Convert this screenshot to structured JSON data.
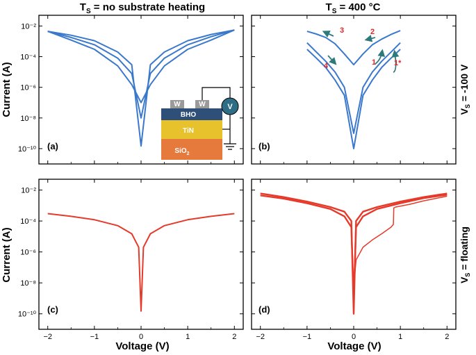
{
  "figure": {
    "column_titles": [
      "T_S = no substrate heating",
      "T_S = 400 °C"
    ],
    "row_labels": [
      "V_S = -100 V",
      "V_S = floating"
    ],
    "xlabel": "Voltage (V)",
    "ylabel": "Current (A)"
  },
  "inset": {
    "electrode_label": "W",
    "meter_label": "V",
    "layers": [
      "BHO",
      "TiN",
      "SiO2"
    ],
    "colors": {
      "bho": "#2e4f78",
      "tin": "#e8c22c",
      "sio2": "#e57a3c",
      "electrode": "#9a9a9a",
      "meter": "#2e6d86"
    }
  },
  "annotations": {
    "arrows": [
      "1",
      "1*",
      "2",
      "3",
      "4"
    ],
    "color": "#e0262b",
    "arrow_color": "#2e7a7a"
  },
  "chart_data": [
    {
      "panel": "(a)",
      "type": "line",
      "xlabel": "",
      "ylabel": "Current (A)",
      "xlim": [
        -2.1,
        2.1
      ],
      "ylim": [
        1e-11,
        0.05
      ],
      "yscale": "log",
      "xticks": [
        -2,
        -1,
        0,
        1,
        2
      ],
      "yticks": [
        1e-10,
        1e-08,
        1e-06,
        0.0001,
        0.01
      ],
      "ytick_labels": [
        "10^-10",
        "10^-8",
        "10^-6",
        "10^-4",
        "10^-2"
      ],
      "color": "#3a78cc",
      "series": [
        {
          "x": [
            -2,
            -1.5,
            -1,
            -0.5,
            -0.2,
            0,
            0.2,
            0.5,
            1,
            1.5,
            2
          ],
          "y": [
            0.0045,
            0.0025,
            0.0011,
            0.0002,
            3e-05,
            1.5e-10,
            3e-05,
            0.0002,
            0.0011,
            0.0028,
            0.0055
          ]
        },
        {
          "x": [
            -2,
            -1.5,
            -1,
            -0.5,
            -0.2,
            0,
            0.2,
            0.5,
            1,
            1.5,
            2
          ],
          "y": [
            0.0045,
            0.0018,
            0.0006,
            8e-05,
            8e-06,
            1e-08,
            8e-06,
            8e-05,
            0.0006,
            0.002,
            0.0055
          ]
        },
        {
          "x": [
            -2,
            -1.5,
            -1,
            -0.5,
            -0.2,
            0,
            0.2,
            0.5,
            1,
            1.5,
            2
          ],
          "y": [
            0.0045,
            0.0012,
            0.0003,
            2.5e-05,
            1.5e-06,
            1e-07,
            1.5e-06,
            2.5e-05,
            0.0003,
            0.0012,
            0.0055
          ]
        }
      ]
    },
    {
      "panel": "(b)",
      "type": "line",
      "xlabel": "",
      "ylabel": "",
      "xlim": [
        -2.1,
        2.1
      ],
      "ylim": [
        1e-11,
        0.05
      ],
      "yscale": "log",
      "xticks": [
        -2,
        -1,
        0,
        1,
        2
      ],
      "yticks": [
        1e-10,
        1e-08,
        1e-06,
        0.0001,
        0.01
      ],
      "color": "#3a78cc",
      "series": [
        {
          "x": [
            -1,
            -0.8,
            -0.6,
            -0.4,
            -0.2,
            0,
            0.2,
            0.4,
            0.6,
            0.8,
            1
          ],
          "y": [
            0.0045,
            0.003,
            0.0018,
            0.0007,
            0.00015,
            3e-05,
            0.00015,
            0.0006,
            0.0014,
            0.0028,
            0.005
          ]
        },
        {
          "x": [
            -1,
            -0.8,
            -0.6,
            -0.4,
            -0.2,
            0,
            0.2,
            0.4,
            0.6,
            0.8,
            1
          ],
          "y": [
            0.0008,
            0.0002,
            5e-05,
            1e-05,
            1e-06,
            1e-09,
            1e-06,
            1e-05,
            5e-05,
            0.0002,
            0.0008
          ]
        },
        {
          "x": [
            -1,
            -0.8,
            -0.6,
            -0.4,
            -0.2,
            0,
            0.2,
            0.4,
            0.6,
            0.8,
            1
          ],
          "y": [
            0.0003,
            8e-05,
            2e-05,
            3e-06,
            3e-07,
            1e-10,
            3e-07,
            3e-06,
            2e-05,
            8e-05,
            0.0003
          ]
        }
      ]
    },
    {
      "panel": "(c)",
      "type": "line",
      "xlabel": "Voltage (V)",
      "ylabel": "Current (A)",
      "xlim": [
        -2.1,
        2.1
      ],
      "ylim": [
        1e-11,
        0.05
      ],
      "yscale": "log",
      "xticks": [
        -2,
        -1,
        0,
        1,
        2
      ],
      "yticks": [
        1e-10,
        1e-08,
        1e-06,
        0.0001,
        0.01
      ],
      "color": "#e53a2a",
      "series": [
        {
          "x": [
            -2,
            -1.5,
            -1,
            -0.5,
            -0.2,
            -0.05,
            0,
            0.05,
            0.2,
            0.5,
            1,
            1.5,
            2
          ],
          "y": [
            0.0003,
            0.0002,
            0.00012,
            5e-05,
            1.5e-05,
            2e-06,
            1.5e-10,
            2e-06,
            1.5e-05,
            5e-05,
            0.00012,
            0.0002,
            0.0003
          ]
        }
      ]
    },
    {
      "panel": "(d)",
      "type": "line",
      "xlabel": "Voltage (V)",
      "ylabel": "",
      "xlim": [
        -2.1,
        2.1
      ],
      "ylim": [
        1e-11,
        0.05
      ],
      "yscale": "log",
      "xticks": [
        -2,
        -1,
        0,
        1,
        2
      ],
      "yticks": [
        1e-10,
        1e-08,
        1e-06,
        0.0001,
        0.01
      ],
      "color": "#e53a2a",
      "series": [
        {
          "x": [
            -2,
            -1.5,
            -1,
            -0.5,
            -0.2,
            -0.05,
            0,
            0.05,
            0.2,
            0.5,
            1,
            1.5,
            2
          ],
          "y": [
            0.006,
            0.0035,
            0.0018,
            0.0008,
            0.0004,
            0.0001,
            1e-10,
            0.0001,
            0.0004,
            0.0008,
            0.0018,
            0.0035,
            0.006
          ]
        },
        {
          "x": [
            -2,
            -1.5,
            -1,
            -0.5,
            -0.2,
            -0.05,
            0,
            0.05,
            0.2,
            0.5,
            1,
            1.5,
            2
          ],
          "y": [
            0.0045,
            0.0028,
            0.0014,
            0.0006,
            0.0002,
            4e-05,
            1e-09,
            4e-05,
            0.0002,
            0.0006,
            0.0014,
            0.003,
            0.005
          ]
        },
        {
          "x": [
            0,
            0.05,
            0.2,
            0.4,
            0.6,
            0.8,
            0.85,
            0.86,
            0.9,
            1.2,
            1.5,
            2
          ],
          "y": [
            5e-09,
            3e-07,
            2e-06,
            6e-06,
            1.5e-05,
            4e-05,
            6e-05,
            0.0007,
            0.0008,
            0.0012,
            0.002,
            0.004
          ]
        }
      ]
    }
  ]
}
